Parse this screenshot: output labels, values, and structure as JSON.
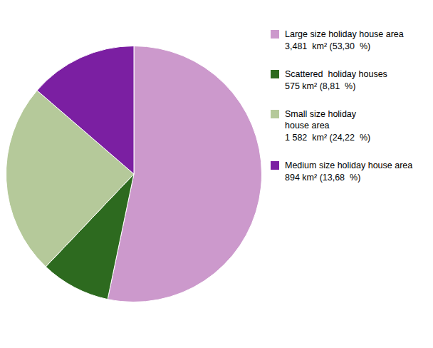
{
  "chart_data": {
    "type": "pie",
    "values": [
      53.3,
      8.81,
      24.22,
      13.68
    ],
    "colors": [
      "#cc99cc",
      "#2d6a1f",
      "#b5c99a",
      "#7b1fa2"
    ],
    "annotations": [
      "Large size holiday house area\n3,481  km² (53,30  %)",
      "Scattered  holiday houses\n575 km² (8,81  %)",
      "Small size holiday\nhouse area\n1 582  km² (24,22  %)",
      "Medium size holiday house area\n894 km² (13,68  %)"
    ]
  }
}
